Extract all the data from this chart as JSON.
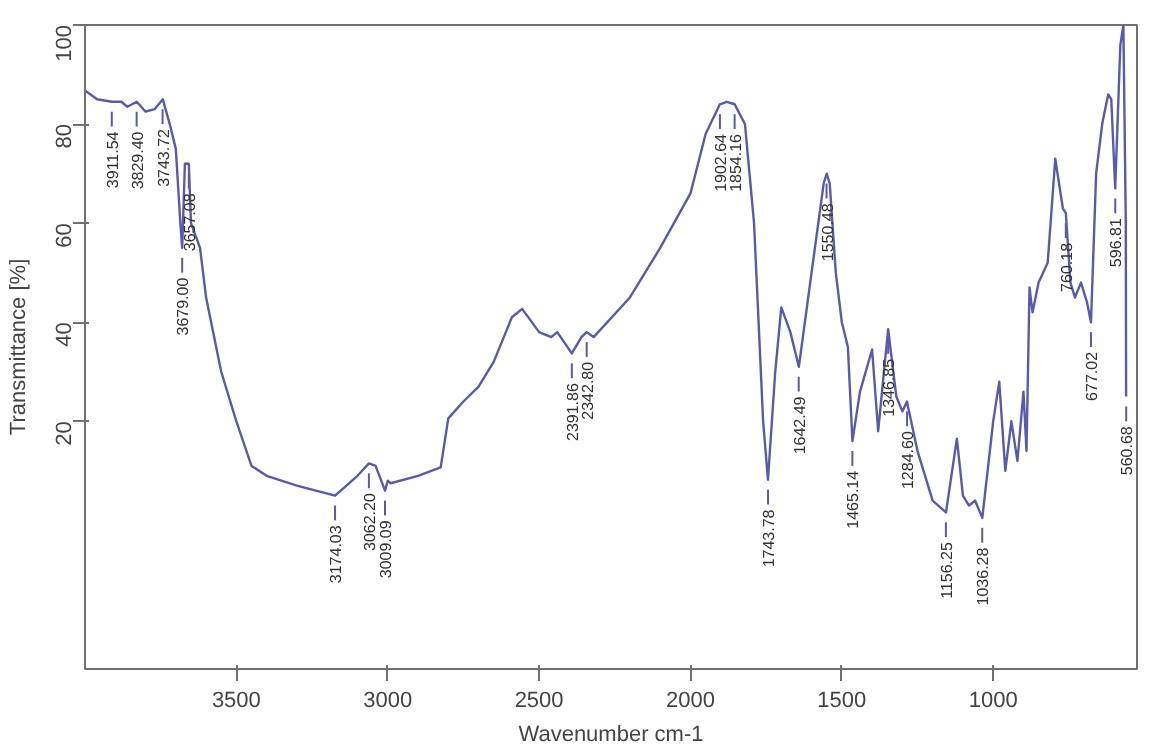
{
  "chart_data": {
    "type": "line",
    "xlabel": "Wavenumber cm-1",
    "ylabel": "Transmittance [%]",
    "xlim": [
      4000,
      525
    ],
    "ylim": [
      -30,
      100
    ],
    "xticks": [
      3500,
      3000,
      2500,
      2000,
      1500,
      1000
    ],
    "yticks": [
      20,
      40,
      60,
      80,
      100
    ],
    "grid": false,
    "marker": "none",
    "line_style": "solid",
    "series": [
      {
        "color": "#5a5aaa",
        "x": [
          4000,
          3960,
          3911,
          3880,
          3860,
          3829,
          3800,
          3770,
          3743,
          3720,
          3700,
          3685,
          3679,
          3670,
          3657,
          3650,
          3620,
          3600,
          3550,
          3500,
          3450,
          3400,
          3300,
          3174,
          3100,
          3062,
          3040,
          3009,
          3000,
          2990,
          2900,
          2825,
          2800,
          2750,
          2700,
          2650,
          2590,
          2556,
          2500,
          2460,
          2440,
          2392,
          2360,
          2343,
          2320,
          2200,
          2100,
          2000,
          1950,
          1903,
          1880,
          1854,
          1820,
          1790,
          1760,
          1744,
          1720,
          1700,
          1670,
          1642,
          1600,
          1560,
          1550,
          1540,
          1520,
          1500,
          1480,
          1465,
          1440,
          1400,
          1380,
          1347,
          1320,
          1300,
          1285,
          1250,
          1200,
          1156,
          1120,
          1100,
          1080,
          1060,
          1036,
          1000,
          980,
          960,
          940,
          920,
          900,
          890,
          880,
          870,
          850,
          820,
          795,
          770,
          760,
          745,
          730,
          710,
          690,
          677,
          660,
          640,
          620,
          610,
          597,
          580,
          570,
          562,
          561
        ],
        "values": [
          86.8,
          85,
          84.5,
          84.5,
          83.5,
          84.5,
          82.5,
          83,
          85,
          80,
          75,
          60,
          55,
          72,
          72,
          60,
          55,
          45,
          30,
          20,
          11,
          9,
          7,
          5,
          9,
          11.5,
          11,
          6,
          8,
          7.5,
          9,
          10.7,
          20.6,
          24,
          27,
          32,
          41,
          42.7,
          38,
          37,
          38,
          33.7,
          37,
          38,
          37,
          45,
          55,
          66,
          78,
          84,
          84.5,
          84,
          80,
          60,
          20,
          8.2,
          30,
          43,
          38,
          31,
          50,
          68,
          70,
          68,
          50,
          40,
          35,
          16,
          26,
          34.5,
          18,
          38.6,
          25,
          22,
          24,
          14,
          4,
          1.6,
          16.5,
          5,
          3,
          4,
          0.5,
          20,
          28,
          10,
          20,
          12,
          26,
          14,
          47,
          42,
          48,
          52,
          73,
          63,
          62,
          48,
          45,
          48,
          44,
          40,
          70,
          80,
          86,
          85,
          67,
          96,
          100,
          60,
          25
        ]
      }
    ],
    "annotations": [
      {
        "text": "3911.54",
        "x": 3911.54,
        "y": 84.5
      },
      {
        "text": "3829.40",
        "x": 3829.4,
        "y": 84.5
      },
      {
        "text": "3743.72",
        "x": 3743.72,
        "y": 85
      },
      {
        "text": "3679.00",
        "x": 3679.0,
        "y": 55
      },
      {
        "text": "3657.08",
        "x": 3657.08,
        "y": 72
      },
      {
        "text": "3174.03",
        "x": 3174.03,
        "y": 5
      },
      {
        "text": "3062.20",
        "x": 3062.2,
        "y": 11.5
      },
      {
        "text": "3009.09",
        "x": 3009.09,
        "y": 6
      },
      {
        "text": "2391.86",
        "x": 2391.86,
        "y": 33.7
      },
      {
        "text": "2342.80",
        "x": 2342.8,
        "y": 38
      },
      {
        "text": "1902.64",
        "x": 1902.64,
        "y": 84
      },
      {
        "text": "1854.16",
        "x": 1854.16,
        "y": 84
      },
      {
        "text": "1743.78",
        "x": 1743.78,
        "y": 8.2
      },
      {
        "text": "1642.49",
        "x": 1642.49,
        "y": 31
      },
      {
        "text": "1550.48",
        "x": 1550.48,
        "y": 70
      },
      {
        "text": "1465.14",
        "x": 1465.14,
        "y": 16
      },
      {
        "text": "1346.85",
        "x": 1346.85,
        "y": 38.6
      },
      {
        "text": "1284.60",
        "x": 1284.6,
        "y": 24
      },
      {
        "text": "1156.25",
        "x": 1156.25,
        "y": 1.6
      },
      {
        "text": "1036.28",
        "x": 1036.28,
        "y": 0.5
      },
      {
        "text": "760.18",
        "x": 760.18,
        "y": 62
      },
      {
        "text": "677.02",
        "x": 677.02,
        "y": 40
      },
      {
        "text": "596.81",
        "x": 596.81,
        "y": 67
      },
      {
        "text": "560.68",
        "x": 560.68,
        "y": 25
      }
    ]
  }
}
